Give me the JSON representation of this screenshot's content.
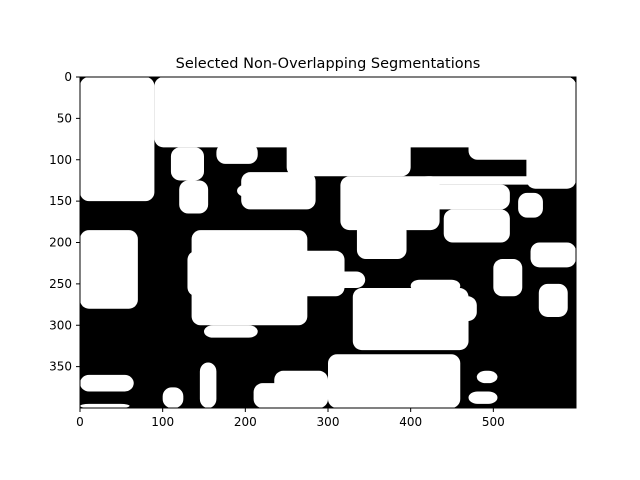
{
  "chart_data": {
    "type": "heatmap",
    "title": "Selected Non-Overlapping Segmentations",
    "xlabel": "",
    "ylabel": "",
    "xlim": [
      0,
      600
    ],
    "ylim": [
      400,
      0
    ],
    "x_ticks": [
      0,
      100,
      200,
      300,
      400,
      500
    ],
    "y_ticks": [
      0,
      50,
      100,
      150,
      200,
      250,
      300,
      350
    ],
    "colormap": "binary",
    "colors": {
      "foreground": "#000000",
      "background": "#ffffff"
    },
    "grid": false,
    "regions_white": [
      {
        "id": "w1",
        "cells": [
          [
            0,
            0,
            90,
            150
          ],
          [
            0,
            185,
            70,
            280
          ],
          [
            0,
            360,
            65,
            380
          ],
          [
            0,
            395,
            60,
            400
          ]
        ]
      },
      {
        "id": "w2",
        "cells": [
          [
            90,
            0,
            600,
            85
          ],
          [
            110,
            0,
            230,
            30
          ],
          [
            250,
            0,
            400,
            120
          ]
        ]
      },
      {
        "id": "w3",
        "cells": [
          [
            460,
            0,
            600,
            60
          ],
          [
            470,
            60,
            600,
            100
          ],
          [
            540,
            0,
            600,
            135
          ]
        ]
      },
      {
        "id": "w4",
        "cells": [
          [
            100,
            25,
            245,
            45
          ],
          [
            110,
            85,
            150,
            125
          ]
        ]
      },
      {
        "id": "w5",
        "cells": [
          [
            165,
            80,
            215,
            105
          ]
        ]
      },
      {
        "id": "w6",
        "cells": [
          [
            195,
            115,
            285,
            160
          ],
          [
            190,
            130,
            235,
            145
          ]
        ]
      },
      {
        "id": "w7",
        "cells": [
          [
            120,
            125,
            155,
            165
          ]
        ]
      },
      {
        "id": "w8",
        "cells": [
          [
            135,
            185,
            275,
            300
          ],
          [
            130,
            210,
            320,
            265
          ],
          [
            150,
            300,
            215,
            315
          ]
        ]
      },
      {
        "id": "w9",
        "cells": [
          [
            315,
            120,
            435,
            185
          ],
          [
            335,
            175,
            395,
            220
          ]
        ]
      },
      {
        "id": "w10",
        "cells": [
          [
            380,
            130,
            520,
            160
          ],
          [
            410,
            120,
            560,
            130
          ],
          [
            440,
            160,
            520,
            200
          ],
          [
            530,
            140,
            560,
            170
          ]
        ]
      },
      {
        "id": "w11",
        "cells": [
          [
            330,
            255,
            470,
            330
          ],
          [
            345,
            265,
            480,
            295
          ],
          [
            400,
            245,
            460,
            260
          ]
        ]
      },
      {
        "id": "w12",
        "cells": [
          [
            300,
            335,
            460,
            400
          ],
          [
            235,
            355,
            300,
            400
          ],
          [
            210,
            370,
            250,
            400
          ]
        ]
      },
      {
        "id": "w13",
        "cells": [
          [
            275,
            235,
            345,
            255
          ]
        ]
      },
      {
        "id": "w14",
        "cells": [
          [
            500,
            220,
            535,
            265
          ]
        ]
      },
      {
        "id": "w15",
        "cells": [
          [
            545,
            200,
            600,
            230
          ],
          [
            555,
            250,
            590,
            290
          ]
        ]
      },
      {
        "id": "w16",
        "cells": [
          [
            480,
            355,
            505,
            370
          ],
          [
            470,
            380,
            505,
            395
          ]
        ]
      },
      {
        "id": "w17",
        "cells": [
          [
            145,
            345,
            165,
            400
          ],
          [
            100,
            375,
            125,
            400
          ]
        ]
      }
    ]
  }
}
